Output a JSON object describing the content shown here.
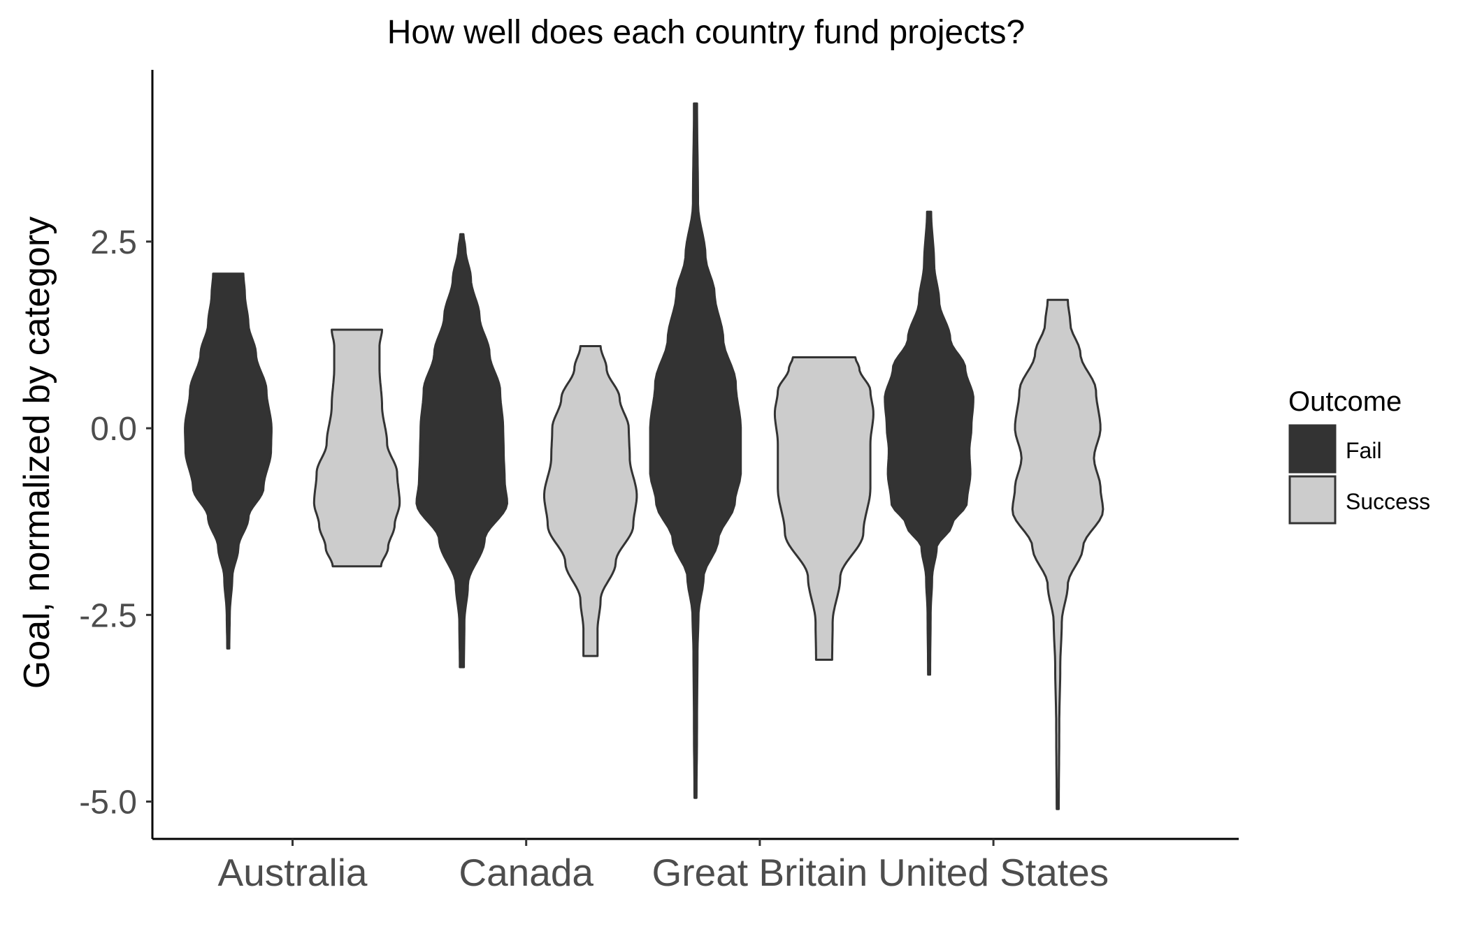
{
  "chart_data": {
    "type": "violin",
    "title": "How well does each country fund projects?",
    "xlabel": "",
    "ylabel": "Goal, normalized by category",
    "categories": [
      "Australia",
      "Canada",
      "Great Britain",
      "United States"
    ],
    "yticks": [
      "2.5",
      "0.0",
      "-2.5",
      "-5.0"
    ],
    "ytick_values": [
      2.5,
      0.0,
      -2.5,
      -5.0
    ],
    "ylim": [
      -5.5,
      4.8
    ],
    "legend": {
      "title": "Outcome",
      "position": "right",
      "entries": [
        "Fail",
        "Success"
      ]
    },
    "colors": {
      "Fail": "#333333",
      "Success": "#cccccc",
      "outline": "#333333"
    },
    "grid": false,
    "series": [
      {
        "name": "Fail",
        "violins": [
          {
            "category": "Australia",
            "min": -2.95,
            "max": 2.07,
            "profile": [
              [
                -2.95,
                0.02
              ],
              [
                -2.5,
                0.03
              ],
              [
                -2.0,
                0.08
              ],
              [
                -1.6,
                0.2
              ],
              [
                -1.2,
                0.4
              ],
              [
                -0.8,
                0.7
              ],
              [
                -0.3,
                0.85
              ],
              [
                0.0,
                0.86
              ],
              [
                0.5,
                0.76
              ],
              [
                1.0,
                0.55
              ],
              [
                1.4,
                0.4
              ],
              [
                1.8,
                0.33
              ],
              [
                2.07,
                0.3
              ]
            ]
          },
          {
            "category": "Canada",
            "min": -3.2,
            "max": 2.6,
            "profile": [
              [
                -3.2,
                0.04
              ],
              [
                -2.6,
                0.05
              ],
              [
                -2.1,
                0.12
              ],
              [
                -1.5,
                0.45
              ],
              [
                -1.0,
                0.9
              ],
              [
                -0.7,
                0.85
              ],
              [
                -0.3,
                0.83
              ],
              [
                0.0,
                0.82
              ],
              [
                0.5,
                0.76
              ],
              [
                1.0,
                0.55
              ],
              [
                1.5,
                0.35
              ],
              [
                2.0,
                0.18
              ],
              [
                2.4,
                0.07
              ],
              [
                2.6,
                0.03
              ]
            ]
          },
          {
            "category": "Great Britain",
            "min": -4.95,
            "max": 4.35,
            "profile": [
              [
                -4.95,
                0.02
              ],
              [
                -4.0,
                0.03
              ],
              [
                -3.0,
                0.04
              ],
              [
                -2.5,
                0.06
              ],
              [
                -2.0,
                0.16
              ],
              [
                -1.5,
                0.45
              ],
              [
                -1.0,
                0.78
              ],
              [
                -0.6,
                0.9
              ],
              [
                0.0,
                0.9
              ],
              [
                0.6,
                0.8
              ],
              [
                1.2,
                0.55
              ],
              [
                1.8,
                0.38
              ],
              [
                2.3,
                0.2
              ],
              [
                3.0,
                0.05
              ],
              [
                4.35,
                0.03
              ]
            ]
          },
          {
            "category": "United States",
            "min": -3.3,
            "max": 2.9,
            "profile": [
              [
                -3.3,
                0.02
              ],
              [
                -2.5,
                0.03
              ],
              [
                -2.0,
                0.06
              ],
              [
                -1.6,
                0.15
              ],
              [
                -1.3,
                0.45
              ],
              [
                -1.0,
                0.75
              ],
              [
                -0.6,
                0.82
              ],
              [
                -0.3,
                0.8
              ],
              [
                0.0,
                0.84
              ],
              [
                0.4,
                0.88
              ],
              [
                0.8,
                0.72
              ],
              [
                1.2,
                0.42
              ],
              [
                1.7,
                0.2
              ],
              [
                2.2,
                0.1
              ],
              [
                2.9,
                0.04
              ]
            ]
          }
        ]
      },
      {
        "name": "Success",
        "violins": [
          {
            "category": "Australia",
            "min": -1.85,
            "max": 1.32,
            "profile": [
              [
                -1.85,
                0.48
              ],
              [
                -1.6,
                0.62
              ],
              [
                -1.3,
                0.75
              ],
              [
                -1.0,
                0.85
              ],
              [
                -0.6,
                0.8
              ],
              [
                -0.2,
                0.6
              ],
              [
                0.3,
                0.5
              ],
              [
                0.8,
                0.45
              ],
              [
                1.1,
                0.45
              ],
              [
                1.32,
                0.5
              ]
            ]
          },
          {
            "category": "Canada",
            "min": -3.05,
            "max": 1.1,
            "profile": [
              [
                -3.05,
                0.14
              ],
              [
                -2.7,
                0.14
              ],
              [
                -2.3,
                0.2
              ],
              [
                -1.8,
                0.5
              ],
              [
                -1.3,
                0.85
              ],
              [
                -0.9,
                0.92
              ],
              [
                -0.4,
                0.78
              ],
              [
                0.0,
                0.76
              ],
              [
                0.4,
                0.58
              ],
              [
                0.8,
                0.32
              ],
              [
                1.1,
                0.2
              ]
            ]
          },
          {
            "category": "Great Britain",
            "min": -3.1,
            "max": 0.95,
            "profile": [
              [
                -3.1,
                0.16
              ],
              [
                -2.6,
                0.17
              ],
              [
                -2.0,
                0.32
              ],
              [
                -1.4,
                0.78
              ],
              [
                -0.8,
                0.92
              ],
              [
                -0.2,
                0.92
              ],
              [
                0.2,
                0.98
              ],
              [
                0.5,
                0.92
              ],
              [
                0.8,
                0.7
              ],
              [
                0.95,
                0.62
              ]
            ]
          },
          {
            "category": "United States",
            "min": -5.1,
            "max": 1.72,
            "profile": [
              [
                -5.1,
                0.02
              ],
              [
                -4.0,
                0.03
              ],
              [
                -3.2,
                0.05
              ],
              [
                -2.6,
                0.08
              ],
              [
                -2.1,
                0.2
              ],
              [
                -1.6,
                0.5
              ],
              [
                -1.1,
                0.9
              ],
              [
                -0.8,
                0.85
              ],
              [
                -0.4,
                0.72
              ],
              [
                0.0,
                0.85
              ],
              [
                0.5,
                0.76
              ],
              [
                1.0,
                0.45
              ],
              [
                1.4,
                0.25
              ],
              [
                1.72,
                0.2
              ]
            ]
          }
        ]
      }
    ]
  }
}
